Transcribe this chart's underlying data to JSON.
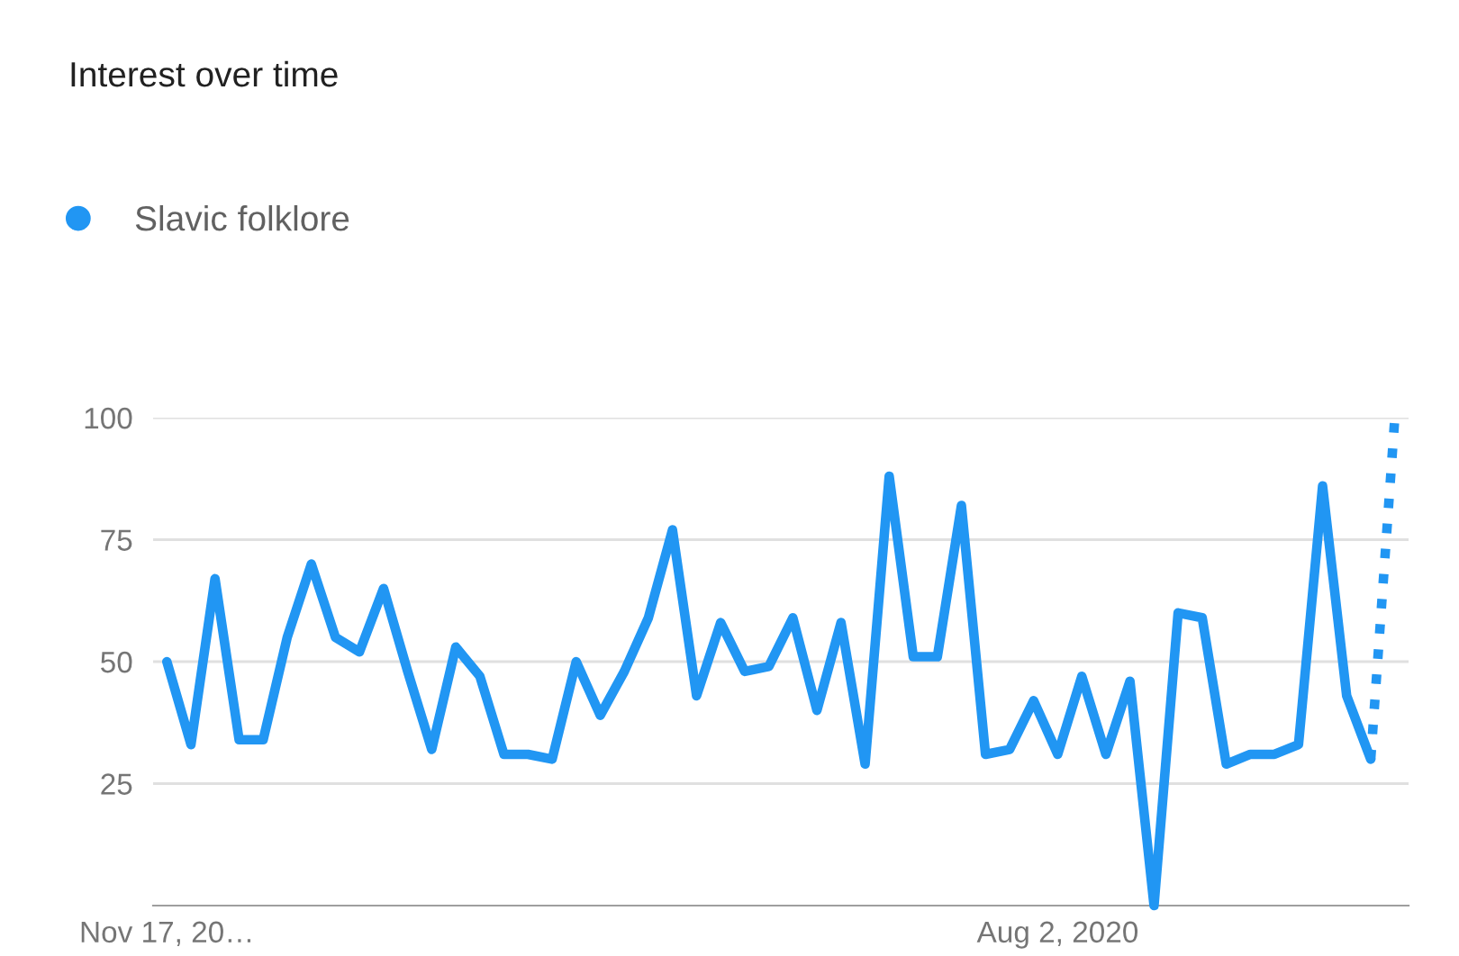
{
  "chart_data": {
    "type": "line",
    "title": "Interest over time",
    "x": [
      "2019-11-17",
      "2019-11-24",
      "2019-12-01",
      "2019-12-08",
      "2019-12-15",
      "2019-12-22",
      "2019-12-29",
      "2020-01-05",
      "2020-01-12",
      "2020-01-19",
      "2020-01-26",
      "2020-02-02",
      "2020-02-09",
      "2020-02-16",
      "2020-02-23",
      "2020-03-01",
      "2020-03-08",
      "2020-03-15",
      "2020-03-22",
      "2020-03-29",
      "2020-04-05",
      "2020-04-12",
      "2020-04-19",
      "2020-04-26",
      "2020-05-03",
      "2020-05-10",
      "2020-05-17",
      "2020-05-24",
      "2020-05-31",
      "2020-06-07",
      "2020-06-14",
      "2020-06-21",
      "2020-06-28",
      "2020-07-05",
      "2020-07-12",
      "2020-07-19",
      "2020-07-26",
      "2020-08-02",
      "2020-08-09",
      "2020-08-16",
      "2020-08-23",
      "2020-08-30",
      "2020-09-06",
      "2020-09-13",
      "2020-09-20",
      "2020-09-27",
      "2020-10-04",
      "2020-10-11",
      "2020-10-18",
      "2020-10-25",
      "2020-11-01"
    ],
    "series": [
      {
        "name": "Slavic folklore",
        "color": "#2196f3",
        "line_style": "solid",
        "values": [
          50,
          33,
          67,
          34,
          34,
          55,
          70,
          55,
          52,
          65,
          48,
          32,
          53,
          47,
          31,
          31,
          30,
          50,
          39,
          48,
          59,
          77,
          43,
          58,
          48,
          49,
          59,
          40,
          58,
          29,
          88,
          51,
          51,
          82,
          31,
          32,
          42,
          31,
          47,
          31,
          46,
          0,
          60,
          59,
          29,
          31,
          31,
          33,
          86,
          43,
          30
        ]
      },
      {
        "color": "#2196f3",
        "line_style": "dotted",
        "x": [
          "2020-11-01",
          "2020-11-08"
        ],
        "values": [
          30,
          100
        ]
      }
    ],
    "xlim": [
      "2019-11-13",
      "2020-11-12"
    ],
    "xticks": [
      {
        "value": "2019-11-17",
        "label": "Nov 17, 20…"
      },
      {
        "value": "2020-08-02",
        "label": "Aug 2, 2020"
      }
    ],
    "ylim": [
      0,
      100
    ],
    "yticks": [
      25,
      50,
      75,
      100
    ],
    "grid": "y",
    "legend": "top left"
  }
}
